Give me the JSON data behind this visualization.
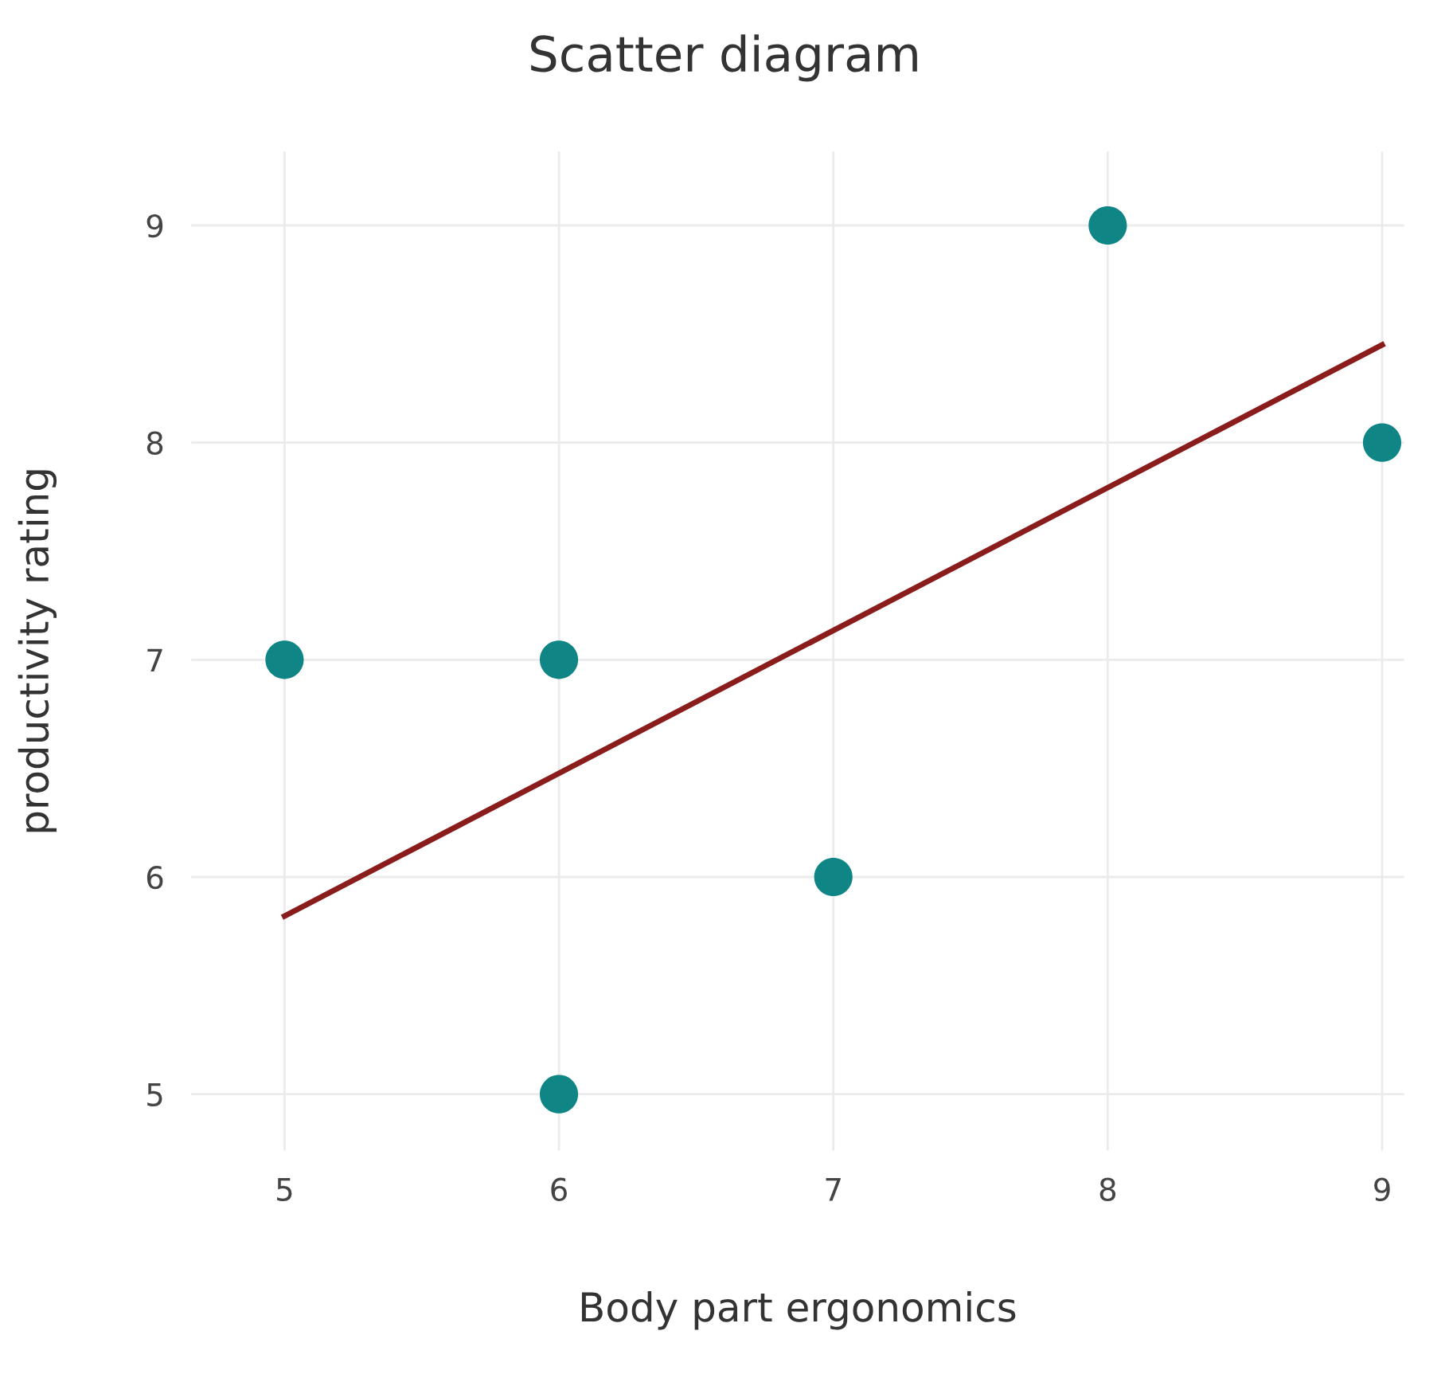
{
  "chart_data": {
    "type": "scatter",
    "title": "Scatter diagram",
    "xlabel": "Body part ergonomics",
    "ylabel": "productivity rating",
    "series": [
      {
        "color": "#0f8585",
        "marker": "circle",
        "x": [
          5,
          6,
          6,
          7,
          8,
          9
        ],
        "values": [
          7,
          7,
          5,
          6,
          9,
          8
        ]
      },
      {
        "type": "line",
        "color": "#8b1c1c",
        "x": [
          5,
          9
        ],
        "values": [
          5.82,
          8.45
        ]
      }
    ],
    "xlim": [
      4.66,
      9.08
    ],
    "ylim": [
      4.74,
      9.34
    ],
    "xticks": [
      5,
      6,
      7,
      8,
      9
    ],
    "yticks": [
      5,
      6,
      7,
      8,
      9
    ],
    "grid": true
  }
}
